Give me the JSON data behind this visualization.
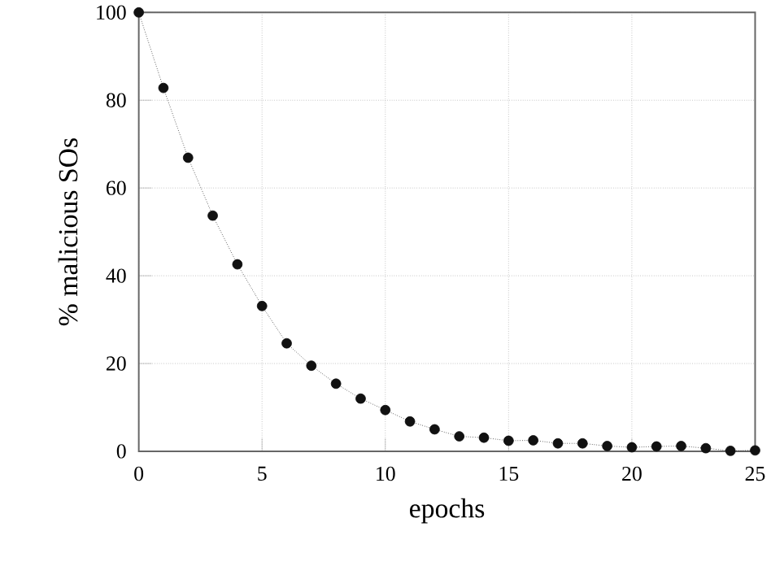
{
  "chart_data": {
    "type": "line",
    "xlabel": "epochs",
    "ylabel": "% malicious SOs",
    "x": [
      0,
      1,
      2,
      3,
      4,
      5,
      6,
      7,
      8,
      9,
      10,
      11,
      12,
      13,
      14,
      15,
      16,
      17,
      18,
      19,
      20,
      21,
      22,
      23,
      24,
      25
    ],
    "series": [
      {
        "color": "#111111",
        "values": [
          100,
          82.8,
          66.9,
          53.7,
          42.6,
          33.1,
          24.6,
          19.5,
          15.4,
          12.0,
          9.4,
          6.8,
          5.0,
          3.4,
          3.1,
          2.4,
          2.5,
          1.8,
          1.8,
          1.2,
          0.9,
          1.1,
          1.2,
          0.7,
          0.1,
          0.2
        ]
      }
    ],
    "xlim": [
      0,
      25
    ],
    "ylim": [
      0,
      100
    ],
    "xticks": [
      0,
      5,
      10,
      15,
      20,
      25
    ],
    "yticks": [
      0,
      20,
      40,
      60,
      80,
      100
    ],
    "grid": true,
    "marker": "circle",
    "line_style": "dotted"
  }
}
